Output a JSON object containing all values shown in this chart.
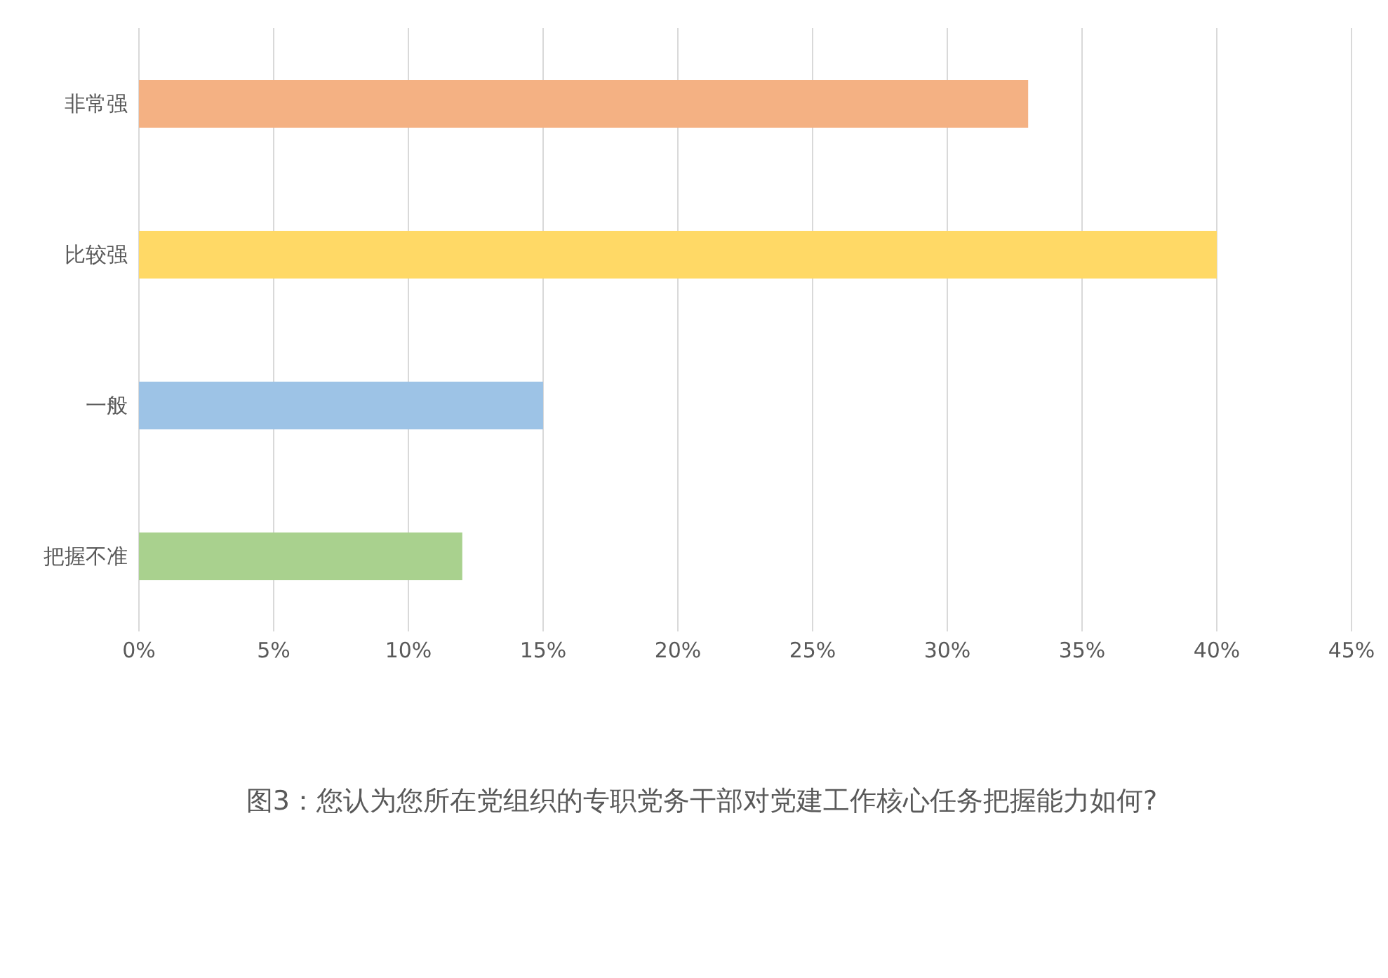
{
  "chart_data": {
    "type": "bar",
    "orientation": "horizontal",
    "title": "图3：您认为您所在党组织的专职党务干部对党建工作核心任务把握能力如何?",
    "categories": [
      "非常强",
      "比较强",
      "一般",
      "把握不准"
    ],
    "values": [
      33,
      40,
      15,
      12
    ],
    "colors": [
      "#f4b183",
      "#ffd966",
      "#9dc3e6",
      "#a9d18e"
    ],
    "xlim": [
      0,
      45
    ],
    "xticks": [
      {
        "value": 0,
        "label": "0%"
      },
      {
        "value": 5,
        "label": "5%"
      },
      {
        "value": 10,
        "label": "10%"
      },
      {
        "value": 15,
        "label": "15%"
      },
      {
        "value": 20,
        "label": "20%"
      },
      {
        "value": 25,
        "label": "25%"
      },
      {
        "value": 30,
        "label": "30%"
      },
      {
        "value": 35,
        "label": "35%"
      },
      {
        "value": 40,
        "label": "40%"
      },
      {
        "value": 45,
        "label": "45%"
      }
    ],
    "grid": "x"
  }
}
